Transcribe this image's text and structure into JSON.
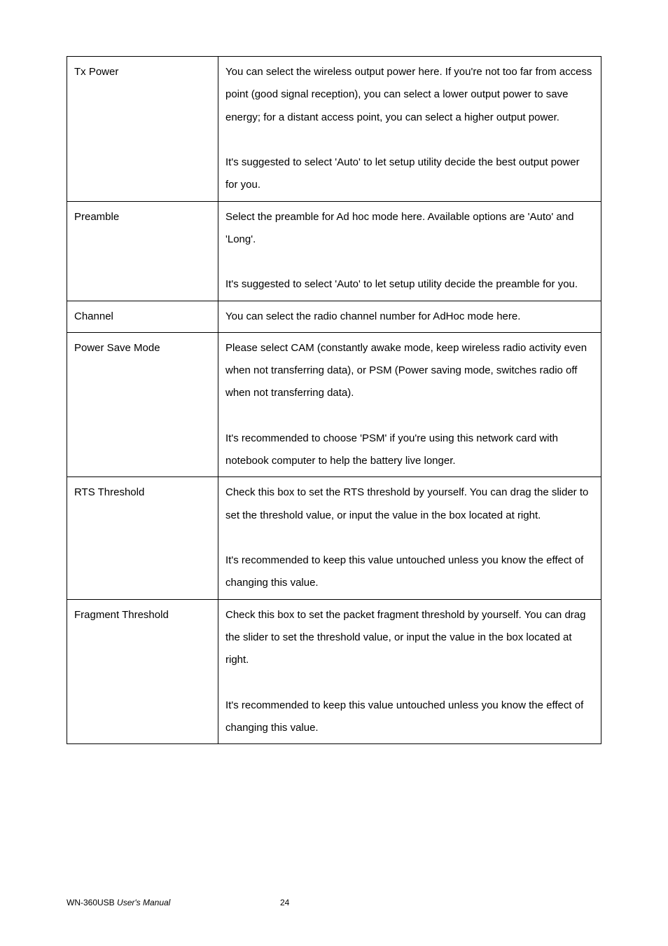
{
  "table": {
    "rows": [
      {
        "label": "Tx Power",
        "content": "You can select the wireless output power here. If you're not too far from access point (good signal reception), you can select a lower output power to save energy; for a distant access point, you can select a higher output power.\n\nIt's suggested to select 'Auto' to let setup utility decide the best output power for you."
      },
      {
        "label": "Preamble",
        "content": "Select the preamble for Ad hoc mode here. Available options are 'Auto' and 'Long'.\n\nIt's suggested to select 'Auto' to let setup utility decide the preamble for you."
      },
      {
        "label": "Channel",
        "content": "You can select the radio channel number for AdHoc mode here."
      },
      {
        "label": "Power Save Mode",
        "content": "Please select CAM (constantly awake mode, keep wireless radio activity even when not transferring data), or PSM (Power saving mode, switches radio off when not transferring data).\n\nIt's recommended to choose 'PSM' if you're using this network card with notebook computer to help the battery live longer."
      },
      {
        "label": "RTS Threshold",
        "content": "Check this box to set the RTS threshold by yourself. You can drag the slider to set the threshold value, or input the value in the box located at right.\n\nIt's recommended to keep this value untouched unless you know the effect of changing this value."
      },
      {
        "label": "Fragment Threshold",
        "content": "Check this box to set the packet fragment threshold by yourself. You can drag the slider to set the threshold value, or input the value in the box located at right.\n\nIt's recommended to keep this value untouched unless you know the effect of changing this value."
      }
    ]
  },
  "footer": {
    "product": "WN-360USB",
    "doc": "User's Manual",
    "page": "24"
  }
}
